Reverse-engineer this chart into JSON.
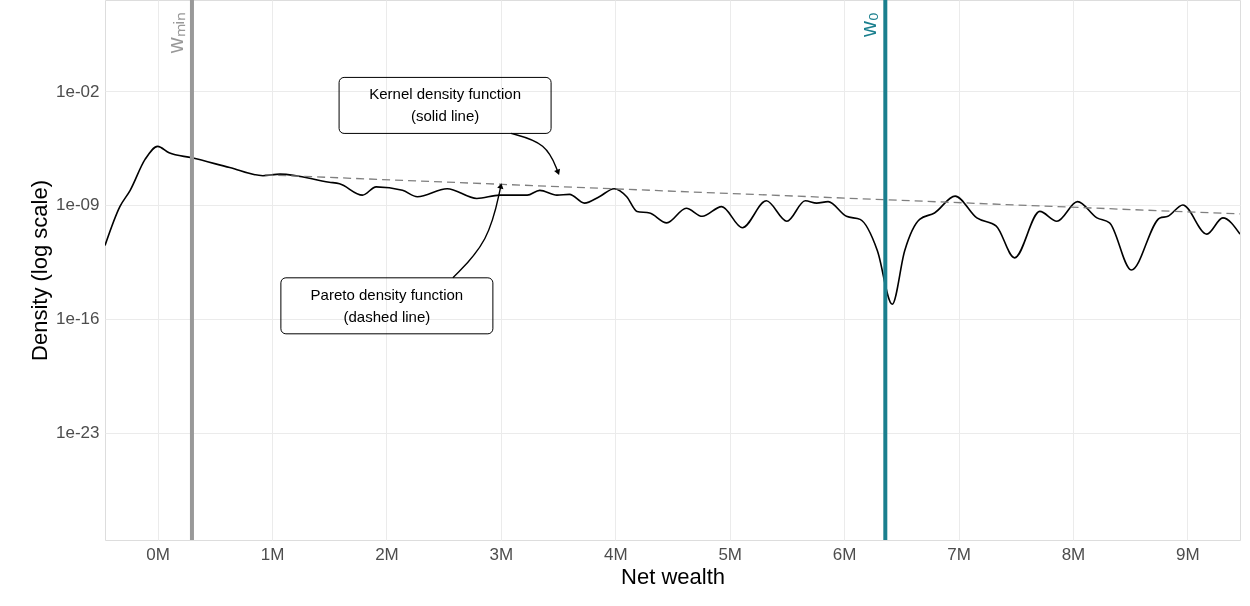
{
  "chart_data": {
    "type": "line",
    "xlabel": "Net wealth",
    "ylabel": "Density (log scale)",
    "log": "y",
    "xlim": [
      -0.46,
      9.46
    ],
    "xticks": [
      {
        "value": 0,
        "label": "0M"
      },
      {
        "value": 1,
        "label": "1M"
      },
      {
        "value": 2,
        "label": "2M"
      },
      {
        "value": 3,
        "label": "3M"
      },
      {
        "value": 4,
        "label": "4M"
      },
      {
        "value": 5,
        "label": "5M"
      },
      {
        "value": 6,
        "label": "6M"
      },
      {
        "value": 7,
        "label": "7M"
      },
      {
        "value": 8,
        "label": "8M"
      },
      {
        "value": 9,
        "label": "9M"
      }
    ],
    "ylim": [
      2.5e-30,
      4000.0
    ],
    "yticks": [
      {
        "value": 1e-23,
        "label": "1e-23"
      },
      {
        "value": 1e-16,
        "label": "1e-16"
      },
      {
        "value": 1e-09,
        "label": "1e-09"
      },
      {
        "value": 0.01,
        "label": "1e-02"
      }
    ],
    "grid": true,
    "series": [
      {
        "color": "#000000",
        "line_style": "solid",
        "x": [
          -0.46,
          -0.33,
          -0.24,
          -0.11,
          0.0,
          0.1,
          0.3,
          0.63,
          0.92,
          1.07,
          1.5,
          1.59,
          1.79,
          1.91,
          2.14,
          2.27,
          2.53,
          2.79,
          2.99,
          3.23,
          3.34,
          3.49,
          3.6,
          3.73,
          3.86,
          3.99,
          4.1,
          4.19,
          4.3,
          4.45,
          4.62,
          4.76,
          4.93,
          5.11,
          5.32,
          5.5,
          5.66,
          5.76,
          5.86,
          6.02,
          6.14,
          6.29,
          6.42,
          6.53,
          6.66,
          6.79,
          6.97,
          7.16,
          7.33,
          7.49,
          7.71,
          7.86,
          8.04,
          8.21,
          8.32,
          8.51,
          8.76,
          8.83,
          8.96,
          9.17,
          9.31,
          9.46
        ],
        "values": [
          3.2e-12,
          7.9e-10,
          7.9e-09,
          6.3e-07,
          4e-06,
          1.6e-06,
          7.9e-07,
          2e-07,
          6.3e-08,
          7.9e-08,
          2.5e-08,
          2e-08,
          4e-09,
          1.3e-08,
          7.9e-09,
          3.2e-09,
          1e-08,
          2.5e-09,
          4e-09,
          4e-09,
          7.9e-09,
          4e-09,
          4.5e-09,
          1.3e-09,
          3.2e-09,
          1e-08,
          3.2e-09,
          4e-10,
          3.2e-10,
          7.9e-11,
          6.3e-10,
          2e-10,
          7.9e-10,
          4e-11,
          1.8e-09,
          1e-10,
          1.8e-09,
          1.3e-09,
          1.6e-09,
          2e-10,
          1.3e-10,
          1.6e-12,
          7.9e-16,
          1.6e-12,
          1.3e-10,
          3.2e-10,
          3.5e-09,
          1.6e-10,
          5e-11,
          5.6e-13,
          4e-10,
          1e-10,
          1.6e-09,
          1.6e-10,
          7.9e-11,
          1e-13,
          1.6e-10,
          2e-10,
          1e-09,
          1.6e-11,
          1.6e-10,
          1.6e-11
        ]
      },
      {
        "color": "#7f7f7f",
        "line_style": "dashed",
        "x": [
          0.94,
          9.46
        ],
        "values": [
          7.1e-08,
          2.8e-10
        ]
      }
    ],
    "ref_lines": [
      {
        "axis": "x",
        "value": 0.3,
        "label": "wₘᵢₙ",
        "color": "#999999"
      },
      {
        "axis": "x",
        "value": 6.36,
        "label": "w₀",
        "color": "#1a7f8e"
      }
    ],
    "annotations": [
      {
        "text": "Kernel density function\n(solid line)",
        "x": 3.5,
        "y": 1e-07
      },
      {
        "text": "Pareto density function\n(dashed line)",
        "x": 3.0,
        "y": 1.5e-08
      }
    ]
  }
}
